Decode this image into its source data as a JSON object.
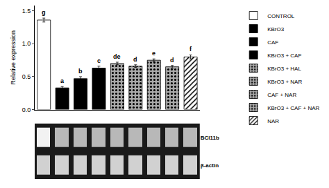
{
  "chart_data": [
    {
      "type": "bar",
      "categories": [
        null,
        null,
        null,
        null,
        null,
        null,
        null,
        null,
        null
      ],
      "ylabel": "Relative expression",
      "ylim": [
        0.0,
        1.58
      ],
      "yticks": [
        {
          "value": 0.0,
          "label": "0.0"
        },
        0.5,
        {
          "value": 1.0,
          "label": "1.0"
        },
        1.5
      ],
      "tick_labels": "y",
      "grid": false,
      "legend": "right",
      "series": [
        {
          "name": "CONTROL",
          "color": "white",
          "values": [
            1.36,
            null,
            null,
            null,
            null,
            null,
            null,
            null,
            null
          ],
          "errors": [
            0.03,
            null,
            null,
            null,
            null,
            null,
            null,
            null,
            null
          ],
          "letters": [
            "g",
            null,
            null,
            null,
            null,
            null,
            null,
            null,
            null
          ]
        },
        {
          "name": "KBrO3",
          "color": "black",
          "values": [
            null,
            0.33,
            null,
            null,
            null,
            null,
            null,
            null,
            null
          ],
          "errors": [
            null,
            0.02,
            null,
            null,
            null,
            null,
            null,
            null,
            null
          ],
          "letters": [
            null,
            "a",
            null,
            null,
            null,
            null,
            null,
            null,
            null
          ]
        },
        {
          "name": "CAF",
          "color": "black",
          "values": [
            null,
            null,
            0.47,
            null,
            null,
            null,
            null,
            null,
            null
          ],
          "errors": [
            null,
            null,
            0.03,
            null,
            null,
            null,
            null,
            null,
            null
          ],
          "letters": [
            null,
            null,
            "b",
            null,
            null,
            null,
            null,
            null,
            null
          ]
        },
        {
          "name": "KBrO3 + CAF",
          "color": "black",
          "values": [
            null,
            null,
            null,
            0.63,
            null,
            null,
            null,
            null,
            null
          ],
          "errors": [
            null,
            null,
            null,
            0.03,
            null,
            null,
            null,
            null,
            null
          ],
          "letters": [
            null,
            null,
            null,
            "c",
            null,
            null,
            null,
            null,
            null
          ]
        },
        {
          "name": "KBrO3 + HAL",
          "color": "#aaaaaa",
          "marker": "dots",
          "values": [
            null,
            null,
            null,
            null,
            0.7,
            null,
            null,
            null,
            null
          ],
          "errors": [
            null,
            null,
            null,
            null,
            0.02,
            null,
            null,
            null,
            null
          ],
          "letters": [
            null,
            null,
            null,
            null,
            "de",
            null,
            null,
            null,
            null
          ]
        },
        {
          "name": "KBrO3 + NAR",
          "color": "#aaaaaa",
          "marker": "dots",
          "values": [
            null,
            null,
            null,
            null,
            null,
            0.66,
            null,
            null,
            null
          ],
          "errors": [
            null,
            null,
            null,
            null,
            null,
            0.02,
            null,
            null,
            null
          ],
          "letters": [
            null,
            null,
            null,
            null,
            null,
            "d",
            null,
            null,
            null
          ]
        },
        {
          "name": "CAF + NAR",
          "color": "#aaaaaa",
          "marker": "dots",
          "values": [
            null,
            null,
            null,
            null,
            null,
            null,
            0.75,
            null,
            null
          ],
          "errors": [
            null,
            null,
            null,
            null,
            null,
            null,
            0.02,
            null,
            null
          ],
          "letters": [
            null,
            null,
            null,
            null,
            null,
            null,
            "e",
            null,
            null
          ]
        },
        {
          "name": "KBrO3 + CAF + NAR",
          "color": "#aaaaaa",
          "marker": "dots",
          "values": [
            null,
            null,
            null,
            null,
            null,
            null,
            null,
            0.65,
            null
          ],
          "errors": [
            null,
            null,
            null,
            null,
            null,
            null,
            null,
            0.02,
            null
          ],
          "letters": [
            null,
            null,
            null,
            null,
            null,
            null,
            null,
            "d",
            null
          ]
        },
        {
          "name": "NAR",
          "color": "white",
          "marker": "hatch",
          "values": [
            null,
            null,
            null,
            null,
            null,
            null,
            null,
            null,
            0.8
          ],
          "errors": [
            null,
            null,
            null,
            null,
            null,
            null,
            null,
            null,
            0.03
          ],
          "letters": [
            null,
            null,
            null,
            null,
            null,
            null,
            null,
            null,
            "f"
          ]
        }
      ]
    },
    {
      "type": "heatmap",
      "categories": [
        null,
        null,
        null,
        null,
        null,
        null,
        null,
        null,
        null
      ],
      "y": [
        "BCl11b",
        "β-actin"
      ],
      "cells": [
        [
          0.95,
          0.72,
          0.72,
          0.72,
          0.72,
          0.72,
          0.72,
          0.72,
          0.72
        ],
        [
          0.82,
          0.82,
          0.82,
          0.82,
          0.82,
          0.82,
          0.82,
          0.82,
          0.82
        ]
      ],
      "zlim": [
        0,
        1
      ],
      "tick_labels": "y"
    }
  ]
}
